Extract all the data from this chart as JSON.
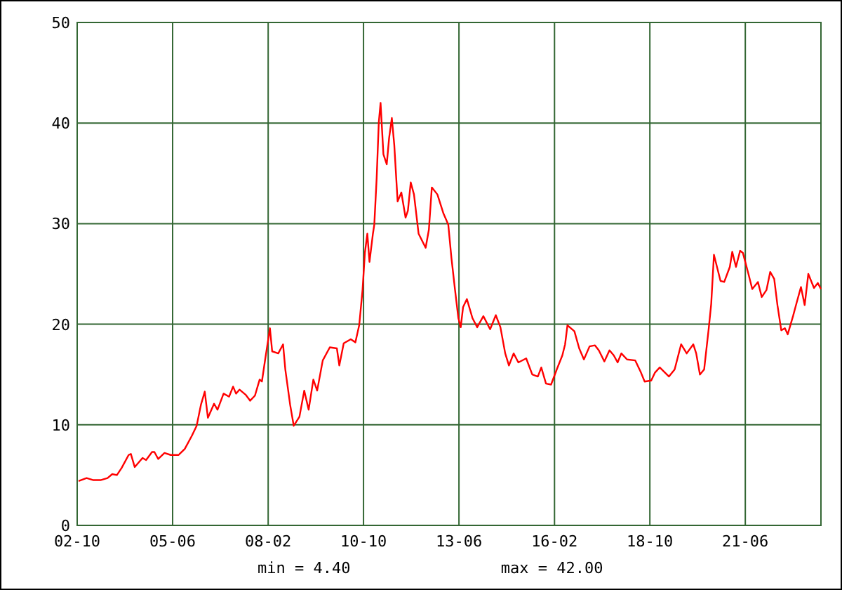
{
  "chart_data": {
    "type": "line",
    "x": [
      "2002-10-15",
      "2003-01-05",
      "2003-03-16",
      "2003-05-27",
      "2003-08-07",
      "2003-09-24",
      "2003-11-10",
      "2003-12-28",
      "2004-03-09",
      "2004-04-01",
      "2004-05-10",
      "2004-07-29",
      "2004-09-03",
      "2004-11-03",
      "2004-11-27",
      "2005-01-05",
      "2005-03-10",
      "2005-05-12",
      "2005-08-01",
      "2005-10-03",
      "2005-12-14",
      "2006-02-01",
      "2006-03-17",
      "2006-04-25",
      "2006-05-27",
      "2006-07-29",
      "2006-09-02",
      "2006-11-03",
      "2006-12-29",
      "2007-02-08",
      "2007-03-10",
      "2007-04-14",
      "2007-06-15",
      "2007-08-01",
      "2007-09-19",
      "2007-11-06",
      "2007-11-29",
      "2008-01-03",
      "2008-02-19",
      "2008-03-13",
      "2008-05-14",
      "2008-07-02",
      "2008-07-25",
      "2008-09-12",
      "2008-10-19",
      "2008-12-16",
      "2009-02-03",
      "2009-03-20",
      "2009-05-07",
      "2009-06-15",
      "2009-08-11",
      "2009-10-22",
      "2010-01-02",
      "2010-01-27",
      "2010-03-13",
      "2010-05-24",
      "2010-07-10",
      "2010-08-18",
      "2010-09-21",
      "2010-10-15",
      "2010-11-09",
      "2010-12-01",
      "2011-01-05",
      "2011-01-19",
      "2011-02-12",
      "2011-03-06",
      "2011-03-24",
      "2011-04-22",
      "2011-05-26",
      "2011-06-19",
      "2011-07-17",
      "2011-08-11",
      "2011-09-14",
      "2011-10-22",
      "2011-12-04",
      "2011-12-28",
      "2012-01-26",
      "2012-02-28",
      "2012-04-15",
      "2012-06-26",
      "2012-07-29",
      "2012-08-28",
      "2012-10-24",
      "2012-12-25",
      "2013-02-12",
      "2013-03-16",
      "2013-04-22",
      "2013-05-26",
      "2013-06-19",
      "2013-07-13",
      "2013-08-21",
      "2013-10-17",
      "2013-12-04",
      "2014-02-05",
      "2014-04-15",
      "2014-06-12",
      "2014-07-29",
      "2014-09-16",
      "2014-10-24",
      "2014-12-11",
      "2015-01-28",
      "2015-04-18",
      "2015-06-19",
      "2015-08-15",
      "2015-09-19",
      "2015-11-06",
      "2015-12-28",
      "2016-02-24",
      "2016-04-21",
      "2016-05-19",
      "2016-06-12",
      "2016-08-22",
      "2016-10-10",
      "2016-11-27",
      "2017-01-24",
      "2017-03-20",
      "2017-04-28",
      "2017-06-24",
      "2017-08-15",
      "2017-09-28",
      "2017-11-06",
      "2017-12-14",
      "2018-02-10",
      "2018-05-05",
      "2018-07-02",
      "2018-08-09",
      "2018-10-15",
      "2018-11-23",
      "2019-01-10",
      "2019-04-14",
      "2019-06-11",
      "2019-08-16",
      "2019-10-12",
      "2019-12-18",
      "2020-01-17",
      "2020-02-24",
      "2020-04-07",
      "2020-05-24",
      "2020-06-18",
      "2020-07-16",
      "2020-09-21",
      "2020-10-29",
      "2020-12-25",
      "2021-01-19",
      "2021-02-26",
      "2021-04-09",
      "2021-05-07",
      "2021-07-03",
      "2021-08-11",
      "2021-10-08",
      "2021-11-16",
      "2022-01-03",
      "2022-02-10",
      "2022-03-23",
      "2022-04-25",
      "2022-06-03",
      "2022-07-10",
      "2022-08-08",
      "2022-10-01",
      "2022-11-03",
      "2022-12-21",
      "2023-01-28",
      "2023-03-06",
      "2023-05-03",
      "2023-06-11",
      "2023-07-13"
    ],
    "series": [
      {
        "color": "#ff0000",
        "values": [
          4.4,
          4.7,
          4.5,
          4.5,
          4.7,
          5.1,
          5.0,
          5.7,
          7.0,
          7.1,
          5.8,
          6.7,
          6.5,
          7.3,
          7.3,
          6.6,
          7.2,
          7.0,
          7.0,
          7.6,
          8.9,
          9.9,
          12.0,
          13.3,
          10.7,
          12.1,
          11.5,
          13.1,
          12.8,
          13.8,
          13.1,
          13.5,
          13.0,
          12.4,
          12.9,
          14.5,
          14.3,
          16.6,
          19.6,
          17.3,
          17.1,
          18.0,
          15.5,
          12.0,
          9.9,
          10.8,
          13.4,
          11.5,
          14.5,
          13.4,
          16.4,
          17.7,
          17.6,
          15.9,
          18.1,
          18.5,
          18.2,
          19.9,
          23.4,
          27.1,
          29.0,
          26.2,
          29.0,
          29.9,
          34.5,
          40.1,
          42.0,
          36.9,
          35.9,
          38.5,
          40.5,
          37.8,
          32.2,
          33.1,
          30.6,
          31.3,
          34.1,
          32.9,
          29.0,
          27.6,
          29.4,
          33.6,
          32.9,
          31.0,
          29.9,
          26.6,
          23.4,
          20.6,
          19.7,
          21.7,
          22.5,
          20.6,
          19.7,
          20.8,
          19.5,
          20.9,
          19.7,
          17.1,
          15.9,
          17.1,
          16.2,
          16.6,
          15.0,
          14.8,
          15.7,
          14.1,
          14.0,
          15.5,
          16.9,
          18.0,
          19.9,
          19.3,
          17.6,
          16.5,
          17.8,
          17.9,
          17.4,
          16.3,
          17.4,
          16.9,
          16.2,
          17.1,
          16.5,
          16.4,
          15.2,
          14.3,
          14.4,
          15.2,
          15.7,
          14.8,
          15.5,
          18.0,
          17.1,
          18.0,
          17.1,
          15.0,
          15.5,
          19.6,
          22.0,
          26.9,
          24.3,
          24.2,
          25.7,
          27.2,
          25.7,
          27.3,
          27.1,
          25.0,
          23.5,
          24.2,
          22.7,
          23.4,
          25.2,
          24.5,
          21.9,
          19.4,
          19.6,
          19.0,
          20.8,
          22.0,
          23.7,
          21.9,
          25.0,
          23.6,
          24.1,
          23.5
        ]
      }
    ],
    "xlim": [
      "2002-10-01",
      "2023-07-13"
    ],
    "xticks": [
      {
        "value": "2002-10",
        "label": "02-10"
      },
      {
        "value": "2005-06",
        "label": "05-06"
      },
      {
        "value": "2008-02",
        "label": "08-02"
      },
      {
        "value": "2010-10",
        "label": "10-10"
      },
      {
        "value": "2013-06",
        "label": "13-06"
      },
      {
        "value": "2016-02",
        "label": "16-02"
      },
      {
        "value": "2018-10",
        "label": "18-10"
      },
      {
        "value": "2021-06",
        "label": "21-06"
      }
    ],
    "ylim": [
      0,
      50
    ],
    "yticks": [
      0,
      10,
      20,
      30,
      40,
      50
    ],
    "grid": true,
    "annotations": [
      "min = 4.40",
      "max = 42.00"
    ]
  }
}
